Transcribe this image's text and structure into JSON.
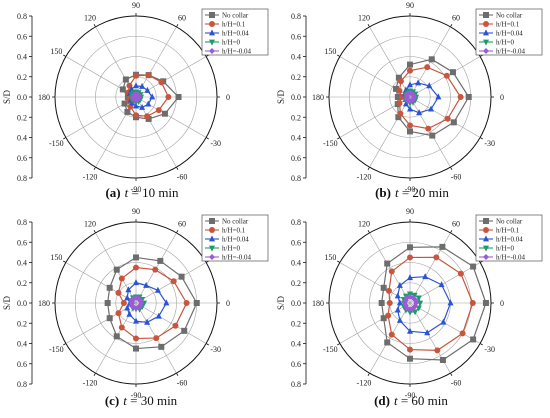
{
  "colors": {
    "no_collar": "#6d6d6d",
    "h_0_1": "#c8553d",
    "h_0_04": "#2a54d4",
    "h_0": "#1f9a6a",
    "h_neg_0_04": "#9b5bd6",
    "grid": "#a0a0a0"
  },
  "markers": [
    "square",
    "circle",
    "triangle-up",
    "triangle-down",
    "diamond"
  ],
  "angle_labels": [
    "90",
    "60",
    "30",
    "0",
    "-30",
    "-60",
    "-90",
    "-120",
    "-150",
    "180",
    "150",
    "120"
  ],
  "r_axis_label": "S/D",
  "r_tick_labels": [
    "0.8",
    "0.6",
    "0.4",
    "0.2",
    "0.0",
    "0.2",
    "0.4",
    "0.6",
    "0.8"
  ],
  "legend_labels": [
    "No collar",
    "h/H=0.1",
    "h/H=0.04",
    "h/H=0",
    "h/H=-0.04"
  ],
  "chart_data": [
    {
      "type": "polar-line",
      "caption": {
        "letter": "(a)",
        "var": "t",
        "rest": " = 10 min"
      },
      "r_range": [
        0,
        0.8
      ],
      "angles_deg": [
        0,
        30,
        60,
        90,
        120,
        150,
        180,
        -150,
        -120,
        -90,
        -60,
        -30
      ],
      "series": [
        {
          "name": "No collar",
          "values": [
            0.42,
            0.31,
            0.25,
            0.22,
            0.2,
            0.15,
            0.08,
            0.13,
            0.17,
            0.2,
            0.25,
            0.33
          ]
        },
        {
          "name": "h/H=0.1",
          "values": [
            0.32,
            0.29,
            0.25,
            0.21,
            0.13,
            0.09,
            0.06,
            0.08,
            0.11,
            0.18,
            0.22,
            0.26
          ]
        },
        {
          "name": "h/H=0.04",
          "values": [
            0.16,
            0.13,
            0.12,
            0.11,
            0.09,
            0.07,
            0.04,
            0.06,
            0.07,
            0.09,
            0.12,
            0.14
          ]
        },
        {
          "name": "h/H=0",
          "values": [
            0.05,
            0.05,
            0.05,
            0.05,
            0.05,
            0.05,
            0.04,
            0.05,
            0.05,
            0.05,
            0.05,
            0.05
          ]
        },
        {
          "name": "h/H=-0.04",
          "values": [
            0.03,
            0.03,
            0.03,
            0.03,
            0.03,
            0.03,
            0.03,
            0.03,
            0.03,
            0.03,
            0.03,
            0.03
          ]
        }
      ]
    },
    {
      "type": "polar-line",
      "caption": {
        "letter": "(b)",
        "var": "t",
        "rest": " = 20 min"
      },
      "r_range": [
        0,
        0.8
      ],
      "angles_deg": [
        0,
        30,
        60,
        90,
        120,
        150,
        180,
        -150,
        -120,
        -90,
        -60,
        -30
      ],
      "series": [
        {
          "name": "No collar",
          "values": [
            0.58,
            0.49,
            0.43,
            0.32,
            0.22,
            0.16,
            0.12,
            0.14,
            0.23,
            0.34,
            0.44,
            0.5
          ]
        },
        {
          "name": "h/H=0.1",
          "values": [
            0.5,
            0.42,
            0.34,
            0.26,
            0.18,
            0.12,
            0.08,
            0.12,
            0.19,
            0.28,
            0.36,
            0.43
          ]
        },
        {
          "name": "h/H=0.04",
          "values": [
            0.28,
            0.22,
            0.16,
            0.12,
            0.08,
            0.06,
            0.04,
            0.05,
            0.08,
            0.12,
            0.18,
            0.24
          ]
        },
        {
          "name": "h/H=0",
          "values": [
            0.06,
            0.06,
            0.06,
            0.06,
            0.05,
            0.05,
            0.04,
            0.05,
            0.05,
            0.06,
            0.06,
            0.06
          ]
        },
        {
          "name": "h/H=-0.04",
          "values": [
            0.04,
            0.04,
            0.04,
            0.04,
            0.04,
            0.04,
            0.03,
            0.04,
            0.04,
            0.04,
            0.04,
            0.04
          ]
        }
      ]
    },
    {
      "type": "polar-line",
      "caption": {
        "letter": "(c)",
        "var": "t",
        "rest": " = 30 min"
      },
      "r_range": [
        0,
        0.8
      ],
      "angles_deg": [
        0,
        30,
        60,
        90,
        120,
        150,
        180,
        -150,
        -120,
        -90,
        -60,
        -30
      ],
      "series": [
        {
          "name": "No collar",
          "values": [
            0.6,
            0.52,
            0.48,
            0.45,
            0.38,
            0.3,
            0.28,
            0.3,
            0.38,
            0.45,
            0.5,
            0.55
          ]
        },
        {
          "name": "h/H=0.1",
          "values": [
            0.5,
            0.43,
            0.38,
            0.35,
            0.28,
            0.2,
            0.12,
            0.2,
            0.28,
            0.35,
            0.4,
            0.45
          ]
        },
        {
          "name": "h/H=0.04",
          "values": [
            0.3,
            0.25,
            0.2,
            0.2,
            0.15,
            0.1,
            0.06,
            0.1,
            0.13,
            0.18,
            0.22,
            0.26
          ]
        },
        {
          "name": "h/H=0",
          "values": [
            0.08,
            0.07,
            0.07,
            0.06,
            0.06,
            0.05,
            0.04,
            0.05,
            0.06,
            0.06,
            0.07,
            0.07
          ]
        },
        {
          "name": "h/H=-0.04",
          "values": [
            0.05,
            0.05,
            0.05,
            0.05,
            0.05,
            0.05,
            0.04,
            0.05,
            0.05,
            0.05,
            0.05,
            0.05
          ]
        }
      ]
    },
    {
      "type": "polar-line",
      "caption": {
        "letter": "(d)",
        "var": "t",
        "rest": " = 60 min"
      },
      "r_range": [
        0,
        0.8
      ],
      "angles_deg": [
        0,
        30,
        60,
        90,
        120,
        150,
        180,
        -150,
        -120,
        -90,
        -60,
        -30
      ],
      "series": [
        {
          "name": "No collar",
          "values": [
            0.75,
            0.72,
            0.64,
            0.55,
            0.45,
            0.3,
            0.28,
            0.3,
            0.45,
            0.55,
            0.65,
            0.72
          ]
        },
        {
          "name": "h/H=0.1",
          "values": [
            0.62,
            0.58,
            0.52,
            0.45,
            0.36,
            0.24,
            0.2,
            0.25,
            0.36,
            0.46,
            0.54,
            0.6
          ]
        },
        {
          "name": "h/H=0.04",
          "values": [
            0.4,
            0.36,
            0.3,
            0.25,
            0.2,
            0.14,
            0.1,
            0.14,
            0.2,
            0.28,
            0.34,
            0.38
          ]
        },
        {
          "name": "h/H=0",
          "values": [
            0.1,
            0.1,
            0.09,
            0.09,
            0.08,
            0.07,
            0.06,
            0.07,
            0.08,
            0.09,
            0.1,
            0.1
          ]
        },
        {
          "name": "h/H=-0.04",
          "values": [
            0.06,
            0.06,
            0.06,
            0.06,
            0.06,
            0.05,
            0.05,
            0.05,
            0.06,
            0.06,
            0.06,
            0.06
          ]
        }
      ]
    }
  ]
}
